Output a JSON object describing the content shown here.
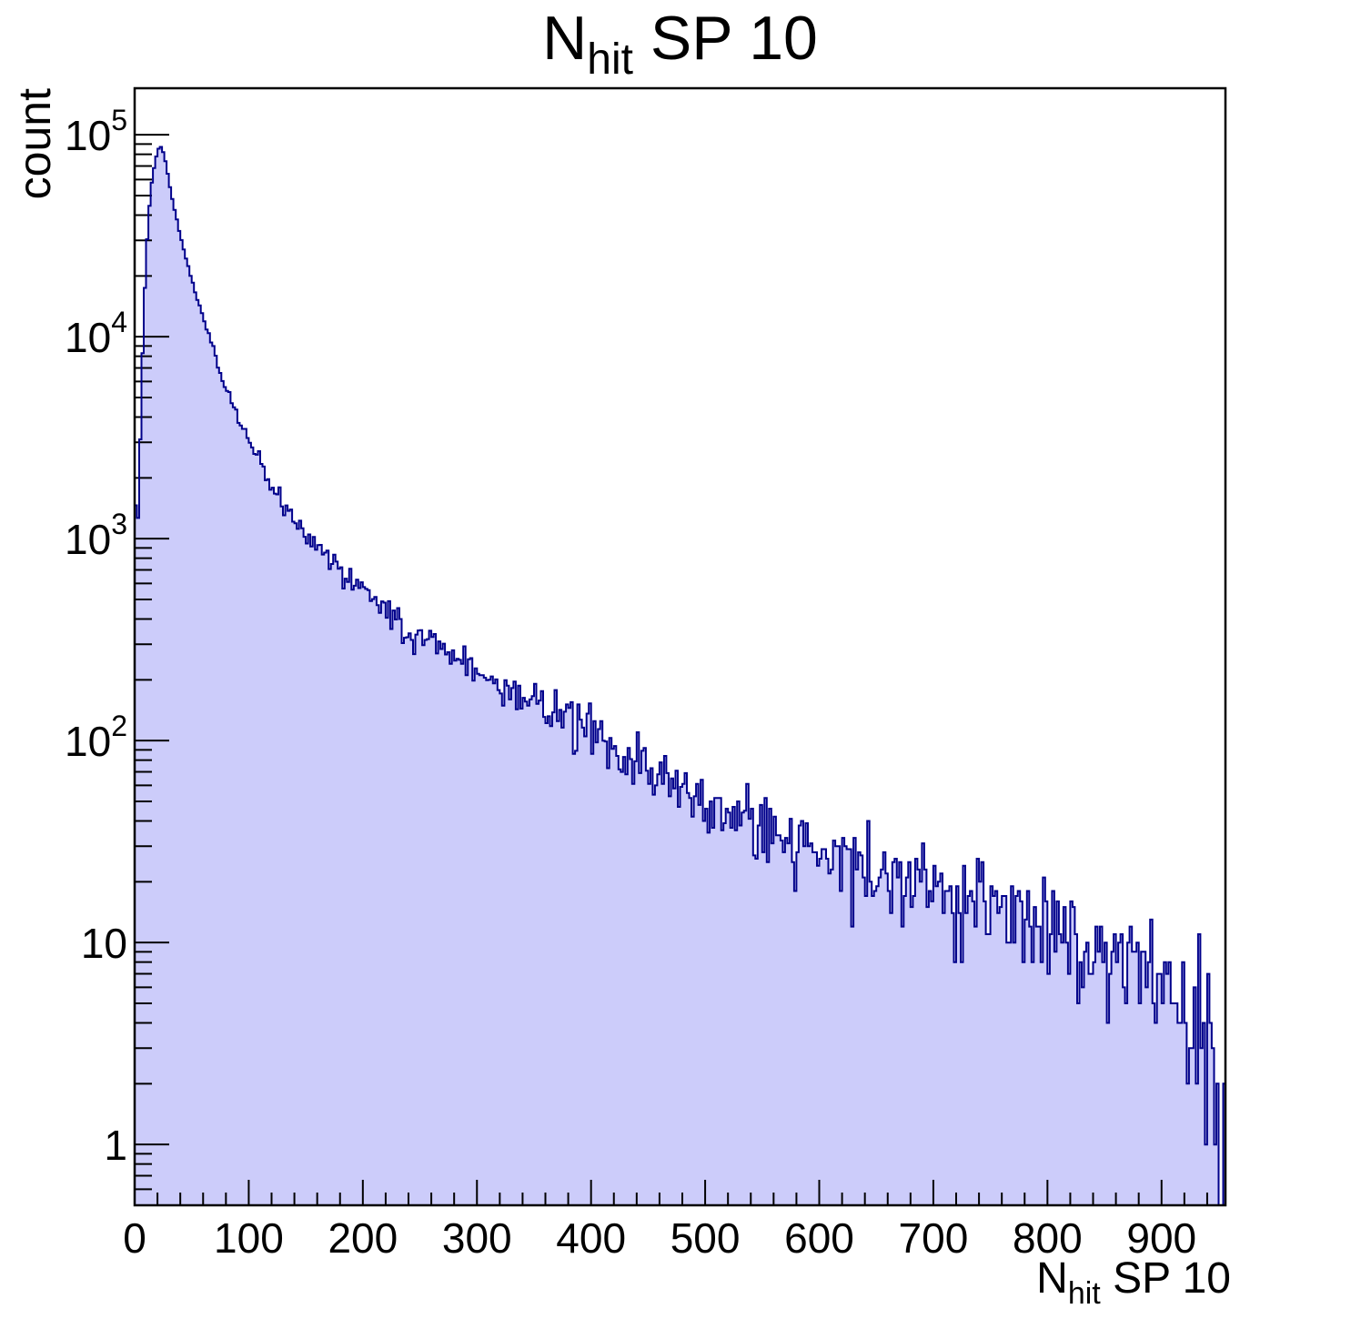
{
  "chart_data": {
    "type": "bar",
    "subtype": "histogram-log-y",
    "title": {
      "prefix": "N",
      "sub": "hit",
      "suffix": " SP 10"
    },
    "xlabel": {
      "prefix": "N",
      "sub": "hit",
      "suffix": " SP 10"
    },
    "ylabel": "count",
    "x_range": [
      0,
      956
    ],
    "bin_width": 2,
    "y_range": [
      0.5,
      170000
    ],
    "y_scale": "log",
    "grid": false,
    "legend": null,
    "x_major_ticks": [
      0,
      100,
      200,
      300,
      400,
      500,
      600,
      700,
      800,
      900
    ],
    "x_minor_tick_step": 20,
    "y_major_ticks": [
      {
        "value": 1,
        "base": "1",
        "exp": ""
      },
      {
        "value": 10,
        "base": "10",
        "exp": ""
      },
      {
        "value": 100,
        "base": "10",
        "exp": "2"
      },
      {
        "value": 1000,
        "base": "10",
        "exp": "3"
      },
      {
        "value": 10000,
        "base": "10",
        "exp": "4"
      },
      {
        "value": 100000,
        "base": "10",
        "exp": "5"
      }
    ],
    "envelope_points": [
      [
        0,
        2900
      ],
      [
        1,
        1550
      ],
      [
        2,
        2550
      ],
      [
        3,
        1450
      ],
      [
        4,
        2100
      ],
      [
        5,
        3100
      ],
      [
        6,
        5300
      ],
      [
        7,
        8500
      ],
      [
        8,
        13500
      ],
      [
        10,
        24000
      ],
      [
        12,
        38000
      ],
      [
        14,
        52000
      ],
      [
        16,
        64000
      ],
      [
        18,
        74000
      ],
      [
        20,
        83000
      ],
      [
        22,
        88000
      ],
      [
        24,
        86000
      ],
      [
        26,
        79000
      ],
      [
        28,
        69000
      ],
      [
        30,
        59500
      ],
      [
        32,
        51500
      ],
      [
        34,
        45000
      ],
      [
        36,
        40000
      ],
      [
        38,
        35500
      ],
      [
        40,
        31800
      ],
      [
        44,
        25800
      ],
      [
        48,
        21200
      ],
      [
        52,
        17600
      ],
      [
        56,
        14700
      ],
      [
        60,
        12400
      ],
      [
        64,
        10500
      ],
      [
        68,
        8900
      ],
      [
        72,
        7600
      ],
      [
        76,
        6500
      ],
      [
        80,
        5600
      ],
      [
        85,
        4700
      ],
      [
        90,
        4000
      ],
      [
        95,
        3500
      ],
      [
        100,
        3100
      ],
      [
        105,
        2700
      ],
      [
        110,
        2400
      ],
      [
        115,
        2100
      ],
      [
        120,
        1850
      ],
      [
        125,
        1650
      ],
      [
        130,
        1480
      ],
      [
        135,
        1340
      ],
      [
        140,
        1220
      ],
      [
        145,
        1120
      ],
      [
        150,
        1030
      ],
      [
        160,
        890
      ],
      [
        170,
        780
      ],
      [
        180,
        700
      ],
      [
        190,
        620
      ],
      [
        200,
        550
      ],
      [
        210,
        495
      ],
      [
        220,
        450
      ],
      [
        230,
        405
      ],
      [
        240,
        365
      ],
      [
        260,
        305
      ],
      [
        280,
        262
      ],
      [
        300,
        228
      ],
      [
        320,
        198
      ],
      [
        340,
        172
      ],
      [
        360,
        148
      ],
      [
        380,
        126
      ],
      [
        400,
        108
      ],
      [
        420,
        92
      ],
      [
        440,
        78
      ],
      [
        460,
        68
      ],
      [
        480,
        58
      ],
      [
        500,
        50
      ],
      [
        520,
        45
      ],
      [
        540,
        40
      ],
      [
        560,
        36
      ],
      [
        580,
        31
      ],
      [
        600,
        27
      ],
      [
        620,
        25
      ],
      [
        640,
        23
      ],
      [
        660,
        21
      ],
      [
        680,
        19
      ],
      [
        700,
        17.5
      ],
      [
        720,
        16.5
      ],
      [
        740,
        15.8
      ],
      [
        760,
        15
      ],
      [
        780,
        13.5
      ],
      [
        800,
        12
      ],
      [
        820,
        10.8
      ],
      [
        840,
        9.6
      ],
      [
        860,
        8.6
      ],
      [
        880,
        7.6
      ],
      [
        900,
        6.8
      ],
      [
        915,
        5.6
      ],
      [
        930,
        4.2
      ],
      [
        940,
        3.2
      ],
      [
        948,
        2.0
      ],
      [
        953,
        1.3
      ],
      [
        956,
        1.0
      ]
    ],
    "noise": {
      "model": "poisson",
      "extra_rel_sigma_max": 0.18,
      "seed": 42
    },
    "colors": {
      "fill": "#ccccfa",
      "line": "#00008b",
      "axis": "#000000",
      "text": "#000000"
    }
  }
}
